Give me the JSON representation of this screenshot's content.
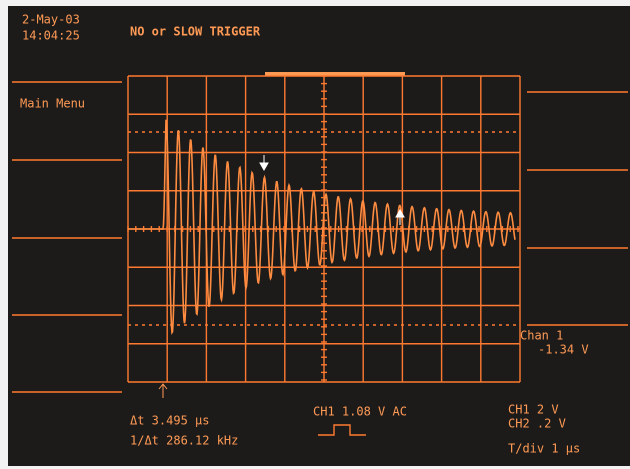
{
  "header": {
    "date": "2-May-03",
    "time": "14:04:25",
    "status": "NO or SLOW TRIGGER"
  },
  "menu": {
    "title": "Main Menu"
  },
  "channel_readout": {
    "label": "Chan 1",
    "value": "-1.34  V"
  },
  "cursor": {
    "delta_t": "Δt  3.495 µs",
    "inverse": "1/Δt  286.12 kHz"
  },
  "trigger": {
    "source": "CH1  1.08  V   AC"
  },
  "scale": {
    "ch1": "CH1   2  V",
    "ch2": "CH2   .2  V",
    "timebase": "T/div  1 µs"
  }
}
